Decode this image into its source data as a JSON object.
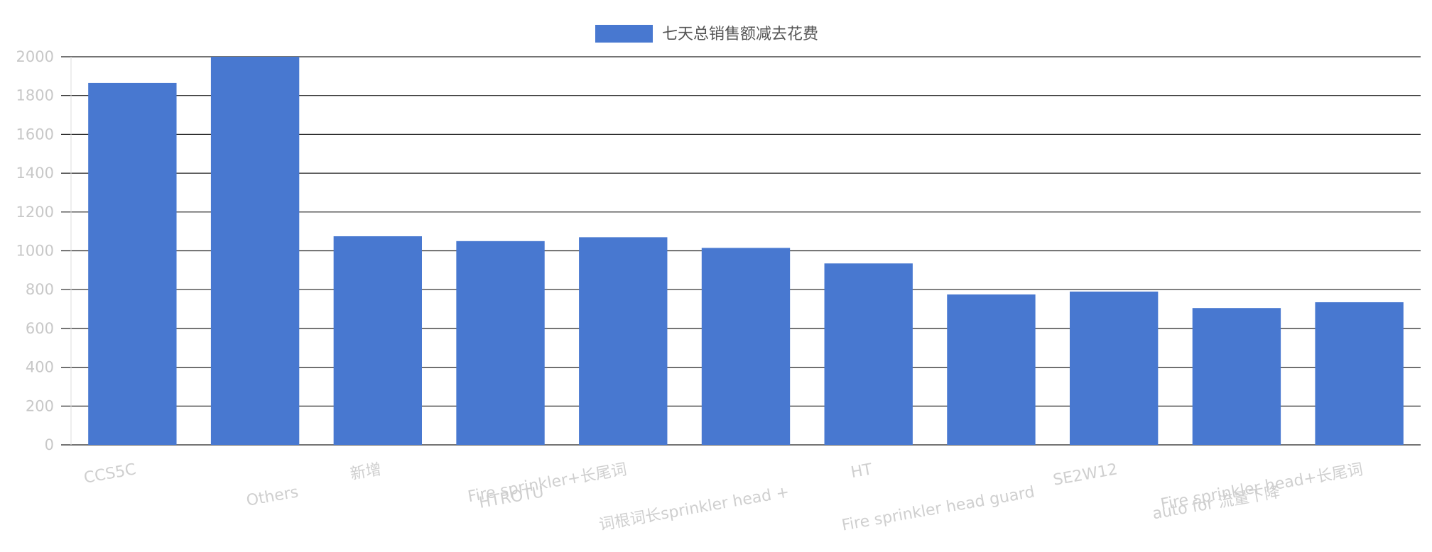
{
  "chart_data": {
    "type": "bar",
    "categories": [
      "CCS5C",
      "Others",
      "新增",
      "HTROTU",
      "Fire sprinkler+长尾词",
      "词根词长sprinkler head +",
      "HT",
      "Fire sprinkler head guard",
      "SE2W12",
      "auto for 流量下降",
      "Fire sprinkler head+长尾词"
    ],
    "series": [
      {
        "name": "七天总销售额减去花费",
        "values": [
          1865,
          2000,
          1075,
          1050,
          1070,
          1015,
          935,
          775,
          790,
          705,
          735
        ]
      }
    ],
    "ylim": [
      0,
      2000
    ],
    "yticks": [
      0,
      200,
      400,
      600,
      800,
      1000,
      1200,
      1400,
      1600,
      1800,
      2000
    ],
    "grid": true,
    "legend_position": "top-center",
    "colors": {
      "bar": "#4878d0",
      "grid": "#222222",
      "tick_text": "#c8c8c8",
      "legend_text": "#555555"
    }
  }
}
